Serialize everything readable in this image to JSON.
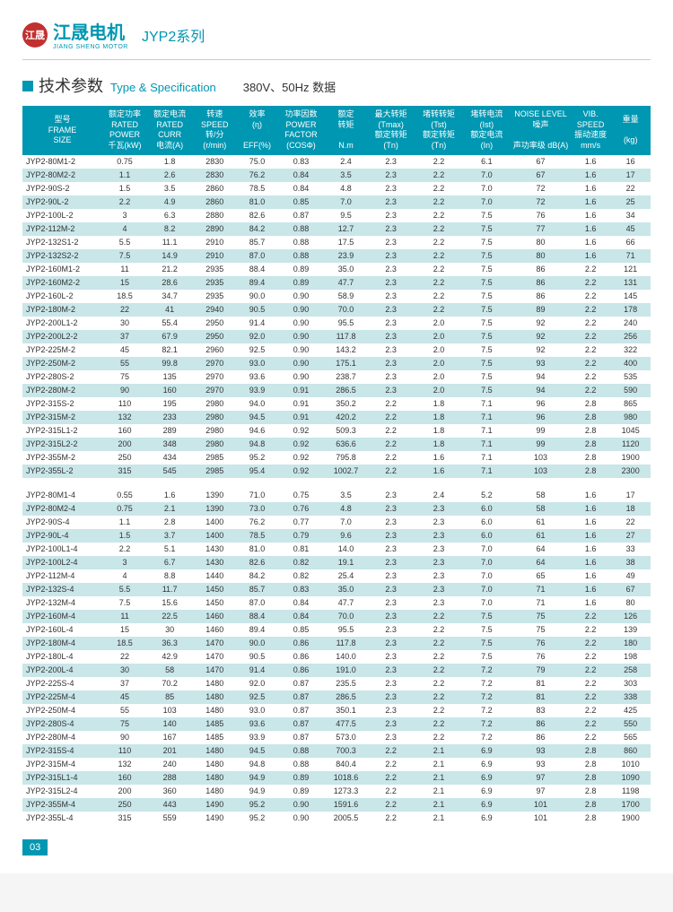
{
  "logo_text": "江晟",
  "brand_cn": "江晟电机",
  "brand_en": "JIANG SHENG MOTOR",
  "series": "JYP2系列",
  "title_cn": "技术参数",
  "title_en": "Type & Specification",
  "voltage": "380V、",
  "freq": "50Hz 数据",
  "page_number": "03",
  "columns": [
    "型号\nFRAME\nSIZE",
    "额定功率\nRATED\nPOWER\n千瓦(kW)",
    "额定电流\nRATED\nCURR\n电流(A)",
    "转速\nSPEED\n转/分\n(r/min)",
    "效率\n(η)\n\nEFF(%)",
    "功率因数\nPOWER\nFACTOR\n(COSΦ)",
    "额定\n转矩\n\nN.m",
    "最大转矩\n(Tmax)\n额定转矩\n(Tn)",
    "堵转转矩\n(Tst)\n额定转矩\n(Tn)",
    "堵转电流\n(Ist)\n额定电流\n(In)",
    "NOISE LEVEL\n噪声\n\n声功率级 dB(A)",
    "VIB.\nSPEED\n振动速度\nmm/s",
    "重量\n\n(kg)"
  ],
  "col_widths": [
    "80",
    "45",
    "45",
    "45",
    "40",
    "48",
    "42",
    "48",
    "48",
    "48",
    "60",
    "40",
    "40"
  ],
  "rows1": [
    [
      "JYP2-80M1-2",
      "0.75",
      "1.8",
      "2830",
      "75.0",
      "0.83",
      "2.4",
      "2.3",
      "2.2",
      "6.1",
      "67",
      "1.6",
      "16"
    ],
    [
      "JYP2-80M2-2",
      "1.1",
      "2.6",
      "2830",
      "76.2",
      "0.84",
      "3.5",
      "2.3",
      "2.2",
      "7.0",
      "67",
      "1.6",
      "17"
    ],
    [
      "JYP2-90S-2",
      "1.5",
      "3.5",
      "2860",
      "78.5",
      "0.84",
      "4.8",
      "2.3",
      "2.2",
      "7.0",
      "72",
      "1.6",
      "22"
    ],
    [
      "JYP2-90L-2",
      "2.2",
      "4.9",
      "2860",
      "81.0",
      "0.85",
      "7.0",
      "2.3",
      "2.2",
      "7.0",
      "72",
      "1.6",
      "25"
    ],
    [
      "JYP2-100L-2",
      "3",
      "6.3",
      "2880",
      "82.6",
      "0.87",
      "9.5",
      "2.3",
      "2.2",
      "7.5",
      "76",
      "1.6",
      "34"
    ],
    [
      "JYP2-112M-2",
      "4",
      "8.2",
      "2890",
      "84.2",
      "0.88",
      "12.7",
      "2.3",
      "2.2",
      "7.5",
      "77",
      "1.6",
      "45"
    ],
    [
      "JYP2-132S1-2",
      "5.5",
      "11.1",
      "2910",
      "85.7",
      "0.88",
      "17.5",
      "2.3",
      "2.2",
      "7.5",
      "80",
      "1.6",
      "66"
    ],
    [
      "JYP2-132S2-2",
      "7.5",
      "14.9",
      "2910",
      "87.0",
      "0.88",
      "23.9",
      "2.3",
      "2.2",
      "7.5",
      "80",
      "1.6",
      "71"
    ],
    [
      "JYP2-160M1-2",
      "11",
      "21.2",
      "2935",
      "88.4",
      "0.89",
      "35.0",
      "2.3",
      "2.2",
      "7.5",
      "86",
      "2.2",
      "121"
    ],
    [
      "JYP2-160M2-2",
      "15",
      "28.6",
      "2935",
      "89.4",
      "0.89",
      "47.7",
      "2.3",
      "2.2",
      "7.5",
      "86",
      "2.2",
      "131"
    ],
    [
      "JYP2-160L-2",
      "18.5",
      "34.7",
      "2935",
      "90.0",
      "0.90",
      "58.9",
      "2.3",
      "2.2",
      "7.5",
      "86",
      "2.2",
      "145"
    ],
    [
      "JYP2-180M-2",
      "22",
      "41",
      "2940",
      "90.5",
      "0.90",
      "70.0",
      "2.3",
      "2.2",
      "7.5",
      "89",
      "2.2",
      "178"
    ],
    [
      "JYP2-200L1-2",
      "30",
      "55.4",
      "2950",
      "91.4",
      "0.90",
      "95.5",
      "2.3",
      "2.0",
      "7.5",
      "92",
      "2.2",
      "240"
    ],
    [
      "JYP2-200L2-2",
      "37",
      "67.9",
      "2950",
      "92.0",
      "0.90",
      "117.8",
      "2.3",
      "2.0",
      "7.5",
      "92",
      "2.2",
      "256"
    ],
    [
      "JYP2-225M-2",
      "45",
      "82.1",
      "2960",
      "92.5",
      "0.90",
      "143.2",
      "2.3",
      "2.0",
      "7.5",
      "92",
      "2.2",
      "322"
    ],
    [
      "JYP2-250M-2",
      "55",
      "99.8",
      "2970",
      "93.0",
      "0.90",
      "175.1",
      "2.3",
      "2.0",
      "7.5",
      "93",
      "2.2",
      "400"
    ],
    [
      "JYP2-280S-2",
      "75",
      "135",
      "2970",
      "93.6",
      "0.90",
      "238.7",
      "2.3",
      "2.0",
      "7.5",
      "94",
      "2.2",
      "535"
    ],
    [
      "JYP2-280M-2",
      "90",
      "160",
      "2970",
      "93.9",
      "0.91",
      "286.5",
      "2.3",
      "2.0",
      "7.5",
      "94",
      "2.2",
      "590"
    ],
    [
      "JYP2-315S-2",
      "110",
      "195",
      "2980",
      "94.0",
      "0.91",
      "350.2",
      "2.2",
      "1.8",
      "7.1",
      "96",
      "2.8",
      "865"
    ],
    [
      "JYP2-315M-2",
      "132",
      "233",
      "2980",
      "94.5",
      "0.91",
      "420.2",
      "2.2",
      "1.8",
      "7.1",
      "96",
      "2.8",
      "980"
    ],
    [
      "JYP2-315L1-2",
      "160",
      "289",
      "2980",
      "94.6",
      "0.92",
      "509.3",
      "2.2",
      "1.8",
      "7.1",
      "99",
      "2.8",
      "1045"
    ],
    [
      "JYP2-315L2-2",
      "200",
      "348",
      "2980",
      "94.8",
      "0.92",
      "636.6",
      "2.2",
      "1.8",
      "7.1",
      "99",
      "2.8",
      "1120"
    ],
    [
      "JYP2-355M-2",
      "250",
      "434",
      "2985",
      "95.2",
      "0.92",
      "795.8",
      "2.2",
      "1.6",
      "7.1",
      "103",
      "2.8",
      "1900"
    ],
    [
      "JYP2-355L-2",
      "315",
      "545",
      "2985",
      "95.4",
      "0.92",
      "1002.7",
      "2.2",
      "1.6",
      "7.1",
      "103",
      "2.8",
      "2300"
    ]
  ],
  "rows2": [
    [
      "JYP2-80M1-4",
      "0.55",
      "1.6",
      "1390",
      "71.0",
      "0.75",
      "3.5",
      "2.3",
      "2.4",
      "5.2",
      "58",
      "1.6",
      "17"
    ],
    [
      "JYP2-80M2-4",
      "0.75",
      "2.1",
      "1390",
      "73.0",
      "0.76",
      "4.8",
      "2.3",
      "2.3",
      "6.0",
      "58",
      "1.6",
      "18"
    ],
    [
      "JYP2-90S-4",
      "1.1",
      "2.8",
      "1400",
      "76.2",
      "0.77",
      "7.0",
      "2.3",
      "2.3",
      "6.0",
      "61",
      "1.6",
      "22"
    ],
    [
      "JYP2-90L-4",
      "1.5",
      "3.7",
      "1400",
      "78.5",
      "0.79",
      "9.6",
      "2.3",
      "2.3",
      "6.0",
      "61",
      "1.6",
      "27"
    ],
    [
      "JYP2-100L1-4",
      "2.2",
      "5.1",
      "1430",
      "81.0",
      "0.81",
      "14.0",
      "2.3",
      "2.3",
      "7.0",
      "64",
      "1.6",
      "33"
    ],
    [
      "JYP2-100L2-4",
      "3",
      "6.7",
      "1430",
      "82.6",
      "0.82",
      "19.1",
      "2.3",
      "2.3",
      "7.0",
      "64",
      "1.6",
      "38"
    ],
    [
      "JYP2-112M-4",
      "4",
      "8.8",
      "1440",
      "84.2",
      "0.82",
      "25.4",
      "2.3",
      "2.3",
      "7.0",
      "65",
      "1.6",
      "49"
    ],
    [
      "JYP2-132S-4",
      "5.5",
      "11.7",
      "1450",
      "85.7",
      "0.83",
      "35.0",
      "2.3",
      "2.3",
      "7.0",
      "71",
      "1.6",
      "67"
    ],
    [
      "JYP2-132M-4",
      "7.5",
      "15.6",
      "1450",
      "87.0",
      "0.84",
      "47.7",
      "2.3",
      "2.3",
      "7.0",
      "71",
      "1.6",
      "80"
    ],
    [
      "JYP2-160M-4",
      "11",
      "22.5",
      "1460",
      "88.4",
      "0.84",
      "70.0",
      "2.3",
      "2.2",
      "7.5",
      "75",
      "2.2",
      "126"
    ],
    [
      "JYP2-160L-4",
      "15",
      "30",
      "1460",
      "89.4",
      "0.85",
      "95.5",
      "2.3",
      "2.2",
      "7.5",
      "75",
      "2.2",
      "139"
    ],
    [
      "JYP2-180M-4",
      "18.5",
      "36.3",
      "1470",
      "90.0",
      "0.86",
      "117.8",
      "2.3",
      "2.2",
      "7.5",
      "76",
      "2.2",
      "180"
    ],
    [
      "JYP2-180L-4",
      "22",
      "42.9",
      "1470",
      "90.5",
      "0.86",
      "140.0",
      "2.3",
      "2.2",
      "7.5",
      "76",
      "2.2",
      "198"
    ],
    [
      "JYP2-200L-4",
      "30",
      "58",
      "1470",
      "91.4",
      "0.86",
      "191.0",
      "2.3",
      "2.2",
      "7.2",
      "79",
      "2.2",
      "258"
    ],
    [
      "JYP2-225S-4",
      "37",
      "70.2",
      "1480",
      "92.0",
      "0.87",
      "235.5",
      "2.3",
      "2.2",
      "7.2",
      "81",
      "2.2",
      "303"
    ],
    [
      "JYP2-225M-4",
      "45",
      "85",
      "1480",
      "92.5",
      "0.87",
      "286.5",
      "2.3",
      "2.2",
      "7.2",
      "81",
      "2.2",
      "338"
    ],
    [
      "JYP2-250M-4",
      "55",
      "103",
      "1480",
      "93.0",
      "0.87",
      "350.1",
      "2.3",
      "2.2",
      "7.2",
      "83",
      "2.2",
      "425"
    ],
    [
      "JYP2-280S-4",
      "75",
      "140",
      "1485",
      "93.6",
      "0.87",
      "477.5",
      "2.3",
      "2.2",
      "7.2",
      "86",
      "2.2",
      "550"
    ],
    [
      "JYP2-280M-4",
      "90",
      "167",
      "1485",
      "93.9",
      "0.87",
      "573.0",
      "2.3",
      "2.2",
      "7.2",
      "86",
      "2.2",
      "565"
    ],
    [
      "JYP2-315S-4",
      "110",
      "201",
      "1480",
      "94.5",
      "0.88",
      "700.3",
      "2.2",
      "2.1",
      "6.9",
      "93",
      "2.8",
      "860"
    ],
    [
      "JYP2-315M-4",
      "132",
      "240",
      "1480",
      "94.8",
      "0.88",
      "840.4",
      "2.2",
      "2.1",
      "6.9",
      "93",
      "2.8",
      "1010"
    ],
    [
      "JYP2-315L1-4",
      "160",
      "288",
      "1480",
      "94.9",
      "0.89",
      "1018.6",
      "2.2",
      "2.1",
      "6.9",
      "97",
      "2.8",
      "1090"
    ],
    [
      "JYP2-315L2-4",
      "200",
      "360",
      "1480",
      "94.9",
      "0.89",
      "1273.3",
      "2.2",
      "2.1",
      "6.9",
      "97",
      "2.8",
      "1198"
    ],
    [
      "JYP2-355M-4",
      "250",
      "443",
      "1490",
      "95.2",
      "0.90",
      "1591.6",
      "2.2",
      "2.1",
      "6.9",
      "101",
      "2.8",
      "1700"
    ],
    [
      "JYP2-355L-4",
      "315",
      "559",
      "1490",
      "95.2",
      "0.90",
      "2005.5",
      "2.2",
      "2.1",
      "6.9",
      "101",
      "2.8",
      "1900"
    ]
  ]
}
